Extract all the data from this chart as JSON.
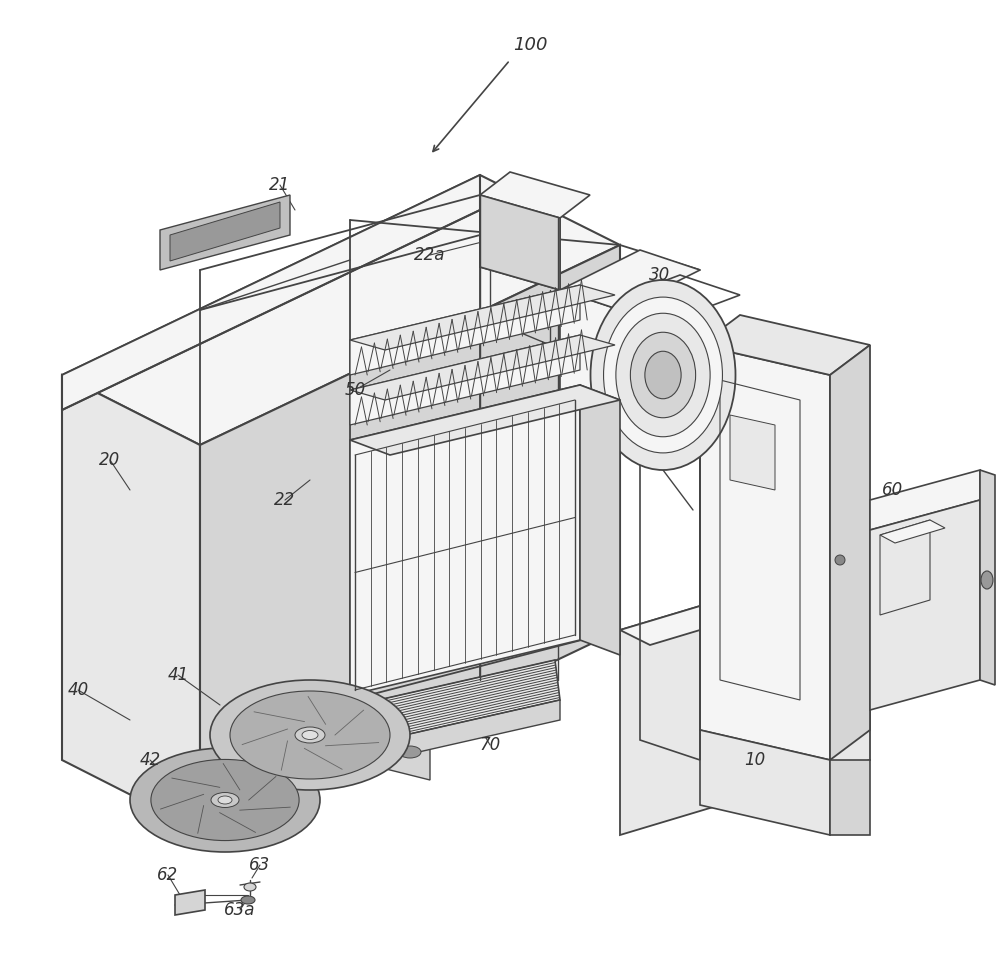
{
  "background_color": "#ffffff",
  "fig_width": 10.0,
  "fig_height": 9.57,
  "line_color": "#444444",
  "label_color": "#333333",
  "label_fontsize": 12,
  "face_light": "#f5f5f5",
  "face_mid": "#e8e8e8",
  "face_dark": "#d5d5d5",
  "face_darker": "#c0c0c0"
}
